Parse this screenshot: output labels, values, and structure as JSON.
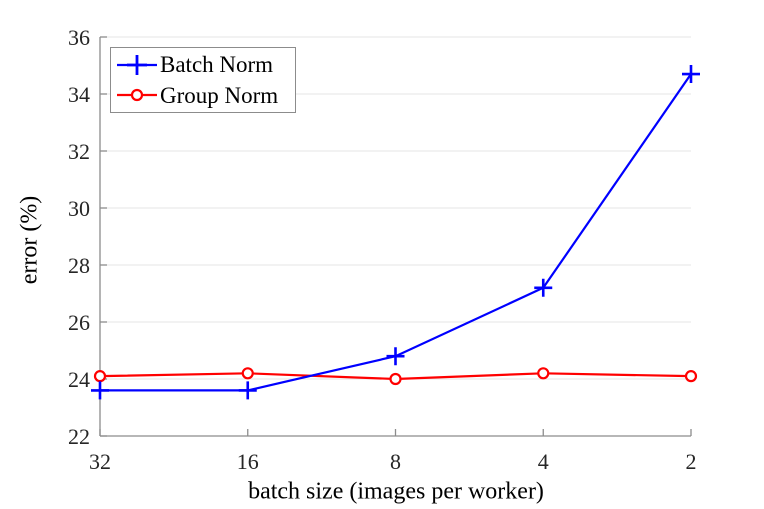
{
  "figure": {
    "background": "#FFFFFF"
  },
  "chart_data": {
    "type": "line",
    "title": "",
    "xlabel": "batch size (images per worker)",
    "ylabel": "error (%)",
    "x_categories": [
      "32",
      "16",
      "8",
      "4",
      "2"
    ],
    "x_axis_note": "log2-spaced categories, descending left to right",
    "ylim": [
      22,
      36
    ],
    "yticks": [
      22,
      24,
      26,
      28,
      30,
      32,
      34,
      36
    ],
    "grid": "horizontal",
    "legend_position": "top-left",
    "series": [
      {
        "name": "Batch Norm",
        "color": "#0000FF",
        "marker": "plus",
        "values": [
          23.6,
          23.6,
          24.8,
          27.2,
          34.7
        ]
      },
      {
        "name": "Group Norm",
        "color": "#FF0000",
        "marker": "circle",
        "values": [
          24.1,
          24.2,
          24.0,
          24.2,
          24.1
        ]
      }
    ],
    "colors": {
      "grid": "#E5E5E5",
      "axis": "#8C8C8C",
      "tick_label": "#262626",
      "label": "#000000",
      "legend_border": "#8C8C8C",
      "marker_face": "#FFFFFF"
    }
  }
}
